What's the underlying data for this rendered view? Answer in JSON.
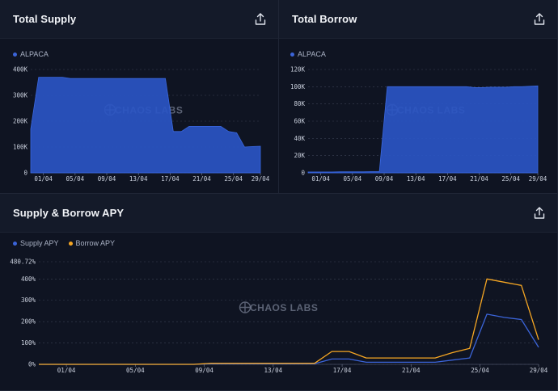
{
  "panels": {
    "total_supply": {
      "title": "Total Supply"
    },
    "total_borrow": {
      "title": "Total Borrow"
    },
    "apy": {
      "title": "Supply & Borrow APY"
    }
  },
  "watermark": "CHAOS LABS",
  "icons": {
    "share": "share-icon",
    "watermark": "chaos-labs-logo-icon"
  },
  "colors": {
    "supply": "#3b64d8",
    "borrow": "#f5a623",
    "area": "#2a55c4"
  },
  "chart_data": [
    {
      "type": "area",
      "title": "Total Supply",
      "legend": [
        "ALPACA"
      ],
      "x_ticks": [
        "01/04",
        "05/04",
        "09/04",
        "13/04",
        "17/04",
        "21/04",
        "25/04",
        "29/04"
      ],
      "y_ticks": [
        "0",
        "100K",
        "200K",
        "300K",
        "400K"
      ],
      "ylim": [
        0,
        400000
      ],
      "x": [
        0,
        1,
        2,
        3,
        4,
        5,
        6,
        7,
        8,
        9,
        10,
        11,
        12,
        13,
        14,
        15,
        16,
        17,
        18,
        19,
        20,
        21,
        22,
        23,
        24,
        25,
        26,
        27,
        28,
        29
      ],
      "series": [
        {
          "name": "ALPACA",
          "values": [
            170000,
            370000,
            370000,
            370000,
            370000,
            365000,
            365000,
            365000,
            365000,
            365000,
            365000,
            365000,
            365000,
            365000,
            365000,
            365000,
            365000,
            365000,
            160000,
            160000,
            180000,
            180000,
            180000,
            180000,
            180000,
            160000,
            155000,
            100000,
            102000,
            103000
          ]
        }
      ]
    },
    {
      "type": "area",
      "title": "Total Borrow",
      "legend": [
        "ALPACA"
      ],
      "x_ticks": [
        "01/04",
        "05/04",
        "09/04",
        "13/04",
        "17/04",
        "21/04",
        "25/04",
        "29/04"
      ],
      "y_ticks": [
        "0",
        "20K",
        "40K",
        "60K",
        "80K",
        "100K",
        "120K"
      ],
      "ylim": [
        0,
        120000
      ],
      "x": [
        0,
        1,
        2,
        3,
        4,
        5,
        6,
        7,
        8,
        9,
        10,
        11,
        12,
        13,
        14,
        15,
        16,
        17,
        18,
        19,
        20,
        21,
        22,
        23,
        24,
        25,
        26,
        27,
        28,
        29
      ],
      "series": [
        {
          "name": "ALPACA",
          "values": [
            1000,
            1000,
            1000,
            1000,
            1200,
            1200,
            1200,
            1200,
            1500,
            1500,
            100000,
            100000,
            100000,
            100000,
            100000,
            100000,
            100000,
            100000,
            100000,
            100000,
            100000,
            99000,
            99000,
            99500,
            99500,
            99500,
            100000,
            100000,
            100500,
            101000
          ]
        }
      ]
    },
    {
      "type": "line",
      "title": "Supply & Borrow APY",
      "legend": [
        "Supply APY",
        "Borrow APY"
      ],
      "x_ticks": [
        "01/04",
        "05/04",
        "09/04",
        "13/04",
        "17/04",
        "21/04",
        "25/04",
        "29/04"
      ],
      "y_ticks": [
        "0%",
        "100%",
        "200%",
        "300%",
        "400%",
        "480.72%"
      ],
      "ylim": [
        0,
        480.72
      ],
      "x": [
        0,
        1,
        2,
        3,
        4,
        5,
        6,
        7,
        8,
        9,
        10,
        11,
        12,
        13,
        14,
        15,
        16,
        17,
        18,
        19,
        20,
        21,
        22,
        23,
        24,
        25,
        26,
        27,
        28,
        29
      ],
      "series": [
        {
          "name": "Supply APY",
          "values": [
            0,
            0,
            0,
            0,
            0,
            0,
            0,
            0,
            0,
            0,
            3,
            3,
            3,
            3,
            3,
            3,
            3,
            25,
            25,
            10,
            10,
            10,
            10,
            10,
            20,
            30,
            235,
            220,
            210,
            80
          ]
        },
        {
          "name": "Borrow APY",
          "values": [
            0,
            0,
            0,
            0,
            0,
            0,
            0,
            0,
            0,
            0,
            5,
            5,
            5,
            5,
            5,
            5,
            5,
            60,
            60,
            30,
            30,
            30,
            30,
            30,
            55,
            75,
            400,
            385,
            370,
            115
          ]
        }
      ]
    }
  ]
}
